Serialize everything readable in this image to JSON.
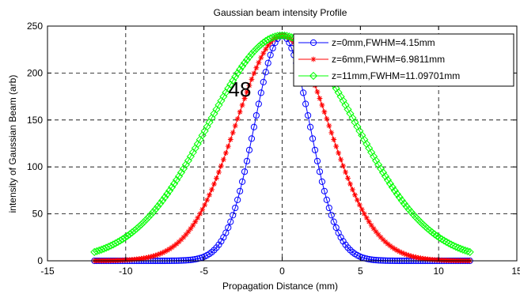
{
  "chart_data": {
    "type": "line",
    "title": "Gaussian beam intensity Profile",
    "xlabel": "Propagation Distance (mm)",
    "ylabel": "intensity of Gaussian Beam (arb)",
    "xlim": [
      -15,
      15
    ],
    "ylim": [
      0,
      250
    ],
    "xticks": [
      -15,
      -10,
      -5,
      0,
      5,
      10,
      15
    ],
    "xtick_labels": [
      "-15",
      "-10",
      "-5",
      "0",
      "5",
      "10",
      "15"
    ],
    "yticks": [
      0,
      50,
      100,
      150,
      200,
      250
    ],
    "ytick_labels": [
      "0",
      "50",
      "100",
      "150",
      "200",
      "250"
    ],
    "grid": true,
    "legend_position": "top-right",
    "annotation": "48",
    "peak": 240,
    "x_range": [
      -12,
      12
    ],
    "series": [
      {
        "name": "z=0mm,FWHM=4.15mm",
        "fwhm": 4.15,
        "color": "#0000ff",
        "marker": "circle"
      },
      {
        "name": "z=6mm,FWHM=6.9811mm",
        "fwhm": 6.9811,
        "color": "#ff0000",
        "marker": "asterisk"
      },
      {
        "name": "z=11mm,FWHM=11.09701mm",
        "fwhm": 11.09701,
        "color": "#00ff00",
        "marker": "diamond"
      }
    ]
  }
}
